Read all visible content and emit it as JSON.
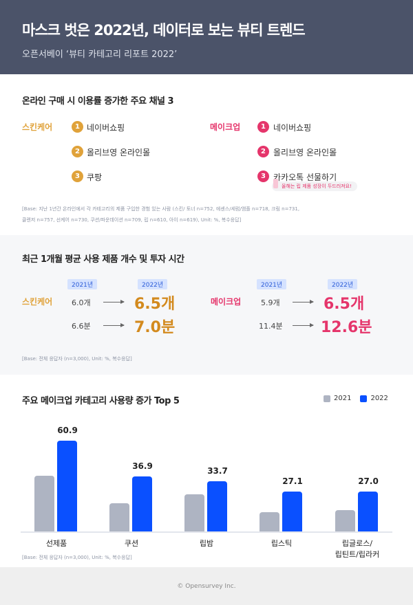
{
  "header": {
    "title": "마스크 벗은 2022년, 데이터로 보는 뷰티 트렌드",
    "subtitle": "오픈서베이 ‘뷰티 카테고리 리포트 2022’"
  },
  "section1": {
    "title": "온라인 구매 시 이용률 증가한 주요 채널 3",
    "skincare": {
      "label": "스킨케어",
      "items": [
        "네이버쇼핑",
        "올리브영 온라인몰",
        "쿠팡"
      ]
    },
    "makeup": {
      "label": "메이크업",
      "items": [
        "네이버쇼핑",
        "올리브영 온라인몰",
        "카카오톡 선물하기"
      ],
      "badge": "올해는 립 제품 성장이 두드러져요!"
    },
    "numbers": [
      "1",
      "2",
      "3"
    ],
    "note1": "[Base: 지난 1년간 온라인에서 각 카테고리의 제품 구입한 경험 있는 사람  (스킨/ 토너 n=752, 에센스/세럼/앰플 n=718, 크림 n=731,",
    "note2": "클렌저 n=757, 선케어 n=730, 쿠션/파운데이션 n=709, 립 n=610, 아이 n=619), Unit: %, 복수응답]"
  },
  "section2": {
    "title": "최근 1개월 평균 사용 제품 개수 및 투자 시간",
    "y2021": "2021년",
    "y2022": "2022년",
    "skincare": {
      "label": "스킨케어",
      "count_2021": "6.0개",
      "count_2022": "6.5개",
      "time_2021": "6.6분",
      "time_2022": "7.0분"
    },
    "makeup": {
      "label": "메이크업",
      "count_2021": "5.9개",
      "count_2022": "6.5개",
      "time_2021": "11.4분",
      "time_2022": "12.6분"
    },
    "note": "[Base: 전체 응답자 (n=3,000), Unit: %, 복수응답]"
  },
  "colors": {
    "skincare": "#e0a23a",
    "skincare_big": "#d38a1e",
    "makeup": "#e5356b",
    "bar2021": "#aeb4c2",
    "bar2022": "#0a50ff"
  },
  "chart_data": {
    "type": "bar",
    "title": "주요 메이크업 카테고리 사용량 증가 Top 5",
    "categories": [
      "선제품",
      "쿠션",
      "립밤",
      "립스틱",
      "립글로스/\n립틴트/립라커"
    ],
    "series": [
      {
        "name": "2021",
        "values": [
          37.5,
          19.2,
          25.2,
          13.3,
          14.7
        ]
      },
      {
        "name": "2022",
        "values": [
          60.9,
          36.9,
          33.7,
          27.1,
          27.0
        ]
      }
    ],
    "data_labels": [
      "60.9",
      "36.9",
      "33.7",
      "27.1",
      "27.0"
    ],
    "ylim": [
      0,
      62
    ],
    "grid": false,
    "legend": "top-right",
    "note": "[Base: 전체 응답자 (n=3,000), Unit: %, 복수응답]"
  },
  "footer": "© Opensurvey Inc."
}
